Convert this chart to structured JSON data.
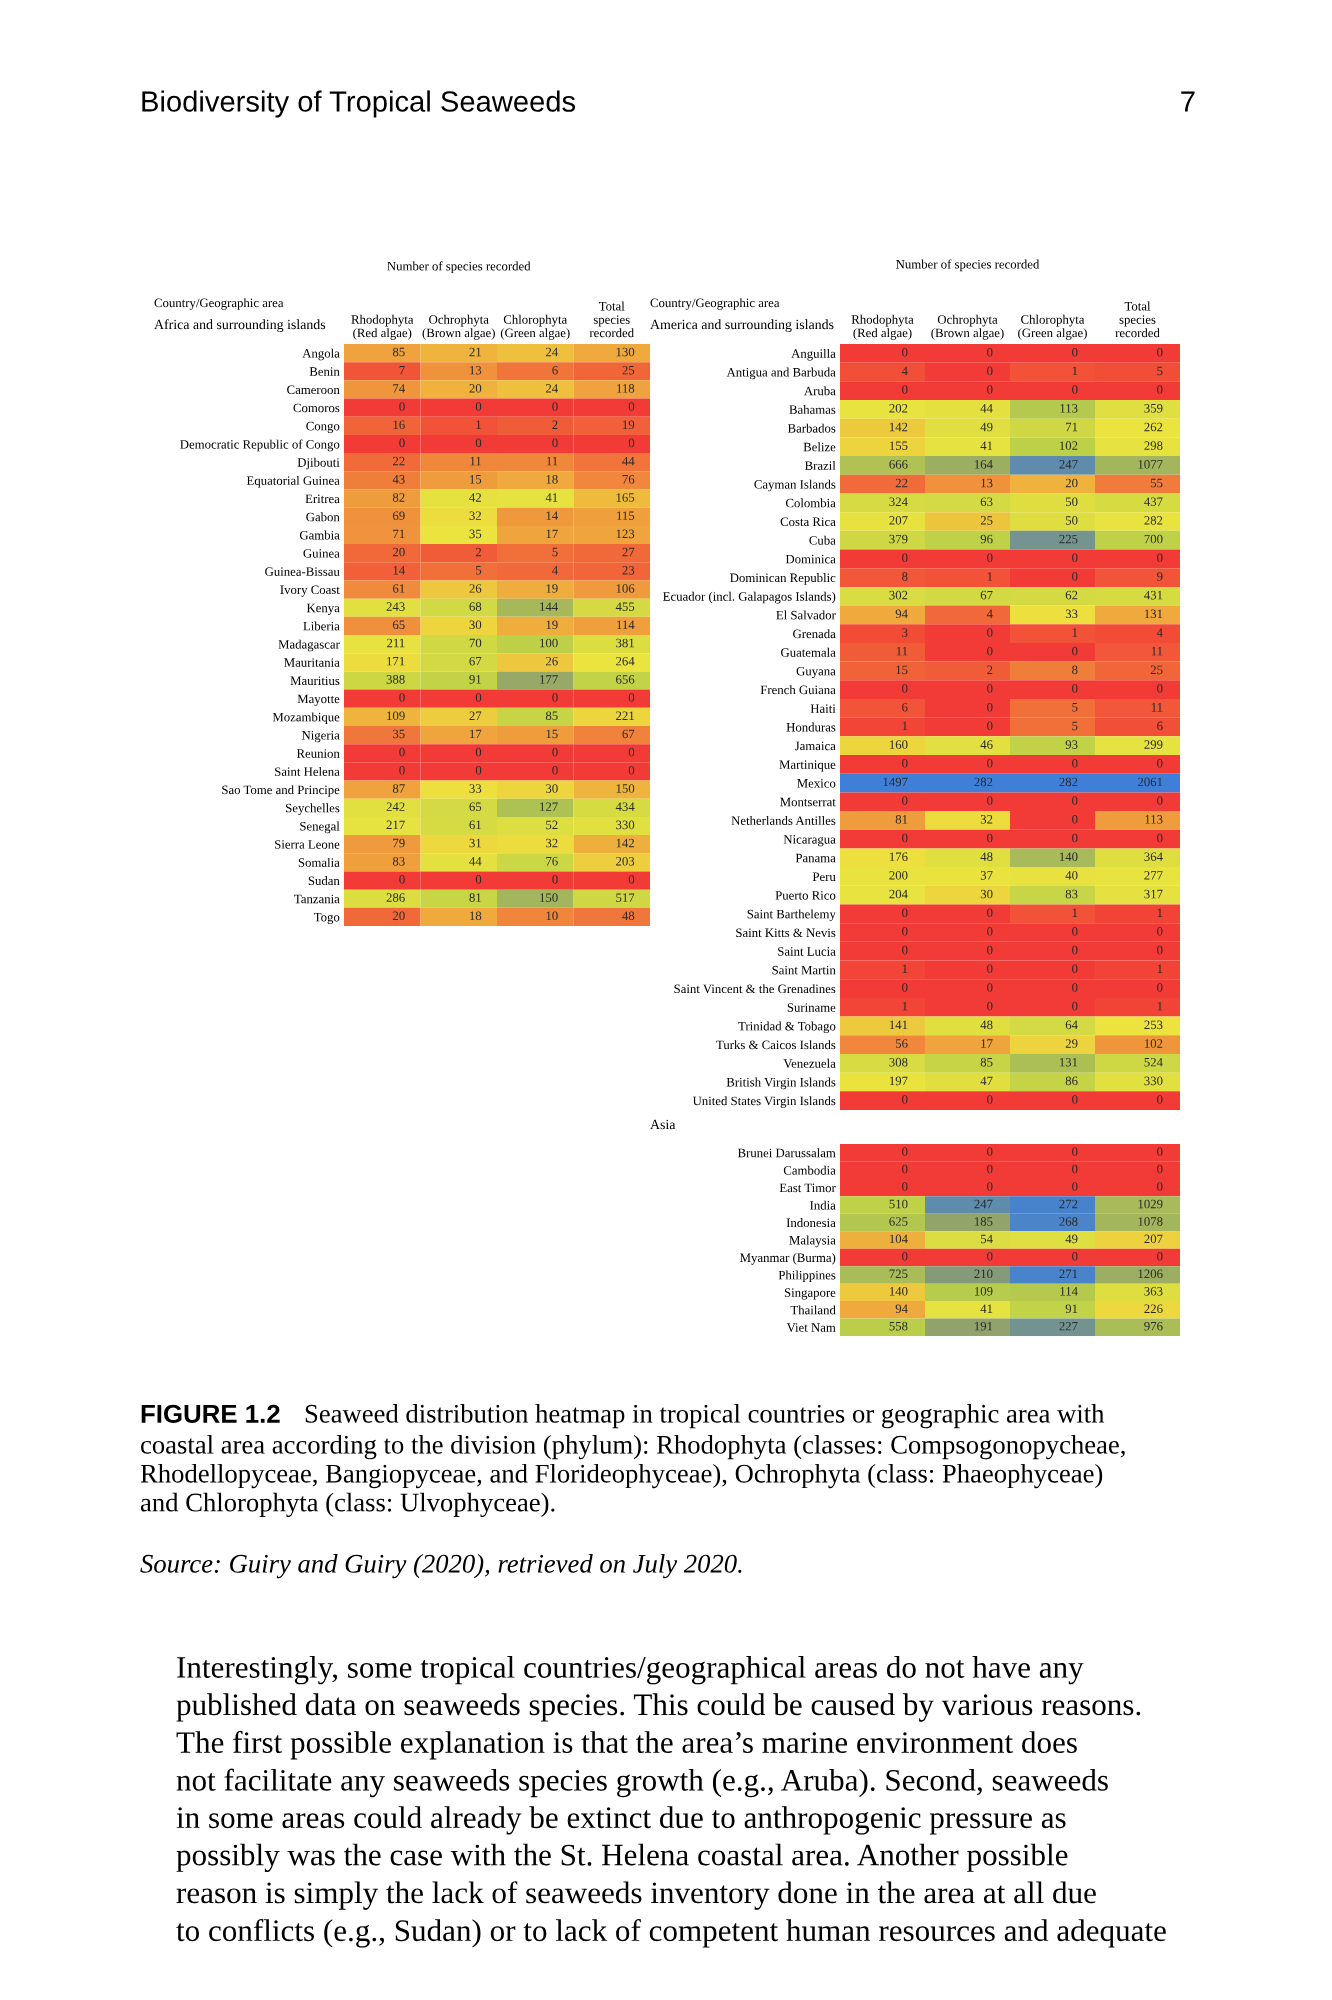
{
  "chart_data": [
    {
      "type": "heatmap",
      "title": "Africa and surrounding islands",
      "xlabel": "Number of species recorded",
      "ylabel": "Country/Geographic area",
      "data_labels": true,
      "categories": [
        "Rhodophyta\n(Red algae)",
        "Ochrophyta\n(Brown algae)",
        "Chlorophyta\n(Green algae)",
        "Total\nspecies\nrecorded"
      ],
      "y_categories": [
        "Angola",
        "Benin",
        "Cameroon",
        "Comoros",
        "Congo",
        "Democratic Republic of Congo",
        "Djibouti",
        "Equatorial Guinea",
        "Eritrea",
        "Gabon",
        "Gambia",
        "Guinea",
        "Guinea-Bissau",
        "Ivory Coast",
        "Kenya",
        "Liberia",
        "Madagascar",
        "Mauritania",
        "Mauritius",
        "Mayotte",
        "Mozambique",
        "Nigeria",
        "Reunion",
        "Saint Helena",
        "Sao Tome and Principe",
        "Seychelles",
        "Senegal",
        "Sierra Leone",
        "Somalia",
        "Sudan",
        "Tanzania",
        "Togo"
      ],
      "cells": [
        [
          85,
          21,
          24,
          130
        ],
        [
          7,
          13,
          6,
          25
        ],
        [
          74,
          20,
          24,
          118
        ],
        [
          0,
          0,
          0,
          0
        ],
        [
          16,
          1,
          2,
          19
        ],
        [
          0,
          0,
          0,
          0
        ],
        [
          22,
          11,
          11,
          44
        ],
        [
          43,
          15,
          18,
          76
        ],
        [
          82,
          42,
          41,
          165
        ],
        [
          69,
          32,
          14,
          115
        ],
        [
          71,
          35,
          17,
          123
        ],
        [
          20,
          2,
          5,
          27
        ],
        [
          14,
          5,
          4,
          23
        ],
        [
          61,
          26,
          19,
          106
        ],
        [
          243,
          68,
          144,
          455
        ],
        [
          65,
          30,
          19,
          114
        ],
        [
          211,
          70,
          100,
          381
        ],
        [
          171,
          67,
          26,
          264
        ],
        [
          388,
          91,
          177,
          656
        ],
        [
          0,
          0,
          0,
          0
        ],
        [
          109,
          27,
          85,
          221
        ],
        [
          35,
          17,
          15,
          67
        ],
        [
          0,
          0,
          0,
          0
        ],
        [
          0,
          0,
          0,
          0
        ],
        [
          87,
          33,
          30,
          150
        ],
        [
          242,
          65,
          127,
          434
        ],
        [
          217,
          61,
          52,
          330
        ],
        [
          79,
          31,
          32,
          142
        ],
        [
          83,
          44,
          76,
          203
        ],
        [
          0,
          0,
          0,
          0
        ],
        [
          286,
          81,
          150,
          517
        ],
        [
          20,
          18,
          10,
          48
        ]
      ],
      "annotations": [
        "Biodiversity of Tropical Seaweeds",
        "7",
        "FIGURE 1.2    Seaweed distribution heatmap in tropical countries or geographic area with\ncoastal area according to the division (phylum): Rhodophyta (classes: Compsogonopycheae,\nRhodellopyceae, Bangiopyceae, and Florideophyceae), Ochrophyta (class: Phaeophyceae)\nand Chlorophyta (class: Ulvophyceae).",
        "Source: Guiry and Guiry (2020), retrieved on July 2020.",
        "Interestingly, some tropical countries/geographical areas do not have any\npublished data on seaweeds species. This could be caused by various reasons.\nThe first possible explanation is that the area’s marine environment does\nnot facilitate any seaweeds species growth (e.g., Aruba). Second, seaweeds\nin some areas could already be extinct due to anthropogenic pressure as\npossibly was the case with the St. Helena coastal area. Another possible\nreason is simply the lack of seaweeds inventory done in the area at all due\nto conflicts (e.g., Sudan) or to lack of competent human resources and adequate"
      ]
    },
    {
      "type": "heatmap",
      "title": "America and surrounding islands",
      "xlabel": "Number of species recorded",
      "ylabel": "Country/Geographic area",
      "data_labels": true,
      "categories": [
        "Rhodophyta\n(Red algae)",
        "Ochrophyta\n(Brown algae)",
        "Chlorophyta\n(Green algae)",
        "Total\nspecies\nrecorded"
      ],
      "y_categories": [
        "Anguilla",
        "Antigua and Barbuda",
        "Aruba",
        "Bahamas",
        "Barbados",
        "Belize",
        "Brazil",
        "Cayman Islands",
        "Colombia",
        "Costa Rica",
        "Cuba",
        "Dominica",
        "Dominican Republic",
        "Ecuador (incl. Galapagos Islands)",
        "El Salvador",
        "Grenada",
        "Guatemala",
        "Guyana",
        "French Guiana",
        "Haiti",
        "Honduras",
        "Jamaica",
        "Martinique",
        "Mexico",
        "Montserrat",
        "Netherlands Antilles",
        "Nicaragua",
        "Panama",
        "Peru",
        "Puerto Rico",
        "Saint Barthelemy",
        "Saint Kitts & Nevis",
        "Saint Lucia",
        "Saint Martin",
        "Saint Vincent & the Grenadines",
        "Suriname",
        "Trinidad & Tobago",
        "Turks & Caicos Islands",
        "Venezuela",
        "British Virgin Islands",
        "United States Virgin Islands"
      ],
      "cells": [
        [
          0,
          0,
          0,
          0
        ],
        [
          4,
          0,
          1,
          5
        ],
        [
          0,
          0,
          0,
          0
        ],
        [
          202,
          44,
          113,
          359
        ],
        [
          142,
          49,
          71,
          262
        ],
        [
          155,
          41,
          102,
          298
        ],
        [
          666,
          164,
          247,
          1077
        ],
        [
          22,
          13,
          20,
          55
        ],
        [
          324,
          63,
          50,
          437
        ],
        [
          207,
          25,
          50,
          282
        ],
        [
          379,
          96,
          225,
          700
        ],
        [
          0,
          0,
          0,
          0
        ],
        [
          8,
          1,
          0,
          9
        ],
        [
          302,
          67,
          62,
          431
        ],
        [
          94,
          4,
          33,
          131
        ],
        [
          3,
          0,
          1,
          4
        ],
        [
          11,
          0,
          0,
          11
        ],
        [
          15,
          2,
          8,
          25
        ],
        [
          0,
          0,
          0,
          0
        ],
        [
          6,
          0,
          5,
          11
        ],
        [
          1,
          0,
          5,
          6
        ],
        [
          160,
          46,
          93,
          299
        ],
        [
          0,
          0,
          0,
          0
        ],
        [
          1497,
          282,
          282,
          2061
        ],
        [
          0,
          0,
          0,
          0
        ],
        [
          81,
          32,
          0,
          113
        ],
        [
          0,
          0,
          0,
          0
        ],
        [
          176,
          48,
          140,
          364
        ],
        [
          200,
          37,
          40,
          277
        ],
        [
          204,
          30,
          83,
          317
        ],
        [
          0,
          0,
          1,
          1
        ],
        [
          0,
          0,
          0,
          0
        ],
        [
          0,
          0,
          0,
          0
        ],
        [
          1,
          0,
          0,
          1
        ],
        [
          0,
          0,
          0,
          0
        ],
        [
          1,
          0,
          0,
          1
        ],
        [
          141,
          48,
          64,
          253
        ],
        [
          56,
          17,
          29,
          102
        ],
        [
          308,
          85,
          131,
          524
        ],
        [
          197,
          47,
          86,
          330
        ],
        [
          0,
          0,
          0,
          0
        ]
      ]
    },
    {
      "type": "heatmap",
      "title": "Asia",
      "data_labels": true,
      "categories": [
        null,
        null,
        null,
        null
      ],
      "y_categories": [
        "Brunei Darussalam",
        "Cambodia",
        "East Timor",
        "India",
        "Indonesia",
        "Malaysia",
        "Myanmar (Burma)",
        "Philippines",
        "Singapore",
        "Thailand",
        "Viet Nam"
      ],
      "cells": [
        [
          0,
          0,
          0,
          0
        ],
        [
          0,
          0,
          0,
          0
        ],
        [
          0,
          0,
          0,
          0
        ],
        [
          510,
          247,
          272,
          1029
        ],
        [
          625,
          185,
          268,
          1078
        ],
        [
          104,
          54,
          49,
          207
        ],
        [
          0,
          0,
          0,
          0
        ],
        [
          725,
          210,
          271,
          1206
        ],
        [
          140,
          109,
          114,
          363
        ],
        [
          94,
          41,
          91,
          226
        ],
        [
          558,
          191,
          227,
          976
        ]
      ]
    }
  ]
}
